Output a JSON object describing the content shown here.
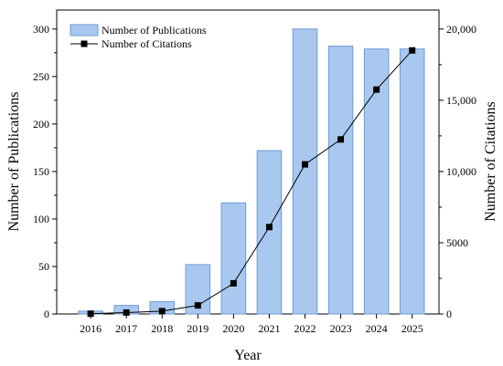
{
  "chart_data": {
    "type": "bar",
    "categories": [
      "2016",
      "2017",
      "2018",
      "2019",
      "2020",
      "2021",
      "2022",
      "2023",
      "2024",
      "2025"
    ],
    "series": [
      {
        "name": "Number of Publications",
        "type": "bar",
        "axis": "left",
        "values": [
          3,
          9,
          13,
          52,
          117,
          172,
          300,
          282,
          279,
          279
        ]
      },
      {
        "name": "Number of Citations",
        "type": "line",
        "axis": "right",
        "values": [
          20,
          100,
          200,
          600,
          2150,
          6100,
          10500,
          12250,
          15750,
          18500
        ]
      }
    ],
    "xlabel": "Year",
    "ylabel": "Number of Publications",
    "y2label": "Number of Citations",
    "ylim": [
      0,
      320
    ],
    "y2lim": [
      0,
      21333
    ],
    "yticks": [
      "0",
      "50",
      "100",
      "150",
      "200",
      "250",
      "300"
    ],
    "y2ticks": [
      "0",
      "5000",
      "10,000",
      "15,000",
      "20,000"
    ],
    "legend_position": "top-left",
    "grid": false,
    "colors": {
      "bar_fill": "#a9c8f0",
      "bar_stroke": "#6f9ad6",
      "line": "#000000",
      "marker": "#000000"
    }
  }
}
